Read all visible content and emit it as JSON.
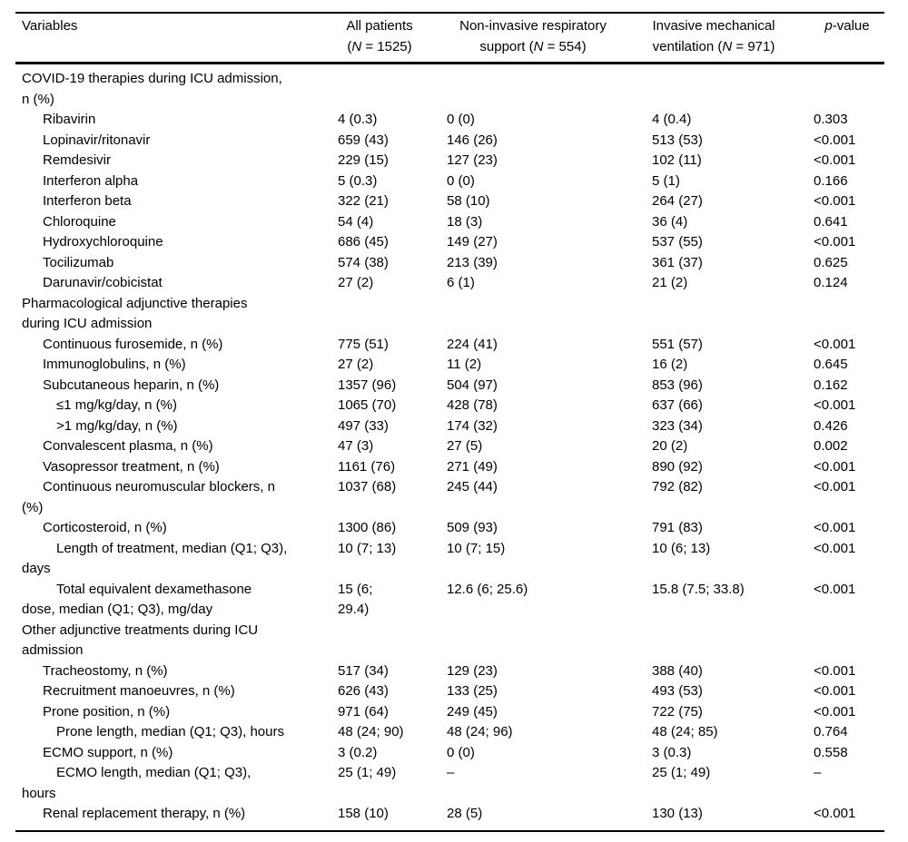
{
  "table": {
    "header": {
      "variables": "Variables",
      "all_patients": {
        "line1": "All patients",
        "open": "(",
        "n": "N",
        "rest": " = 1525)"
      },
      "non_invasive": {
        "line1": "Non-invasive respiratory",
        "pre": "support (",
        "n": "N",
        "rest": " = 554)"
      },
      "invasive": {
        "line1": "Invasive mechanical",
        "pre": "ventilation (",
        "n": "N",
        "rest": " = 971)"
      },
      "p_value": {
        "p": "p",
        "rest": "-value"
      }
    },
    "rows": [
      {
        "label": "COVID-19 therapies during ICU admission,\nn (%)",
        "v1": "",
        "v2": "",
        "v3": "",
        "p": ""
      },
      {
        "label": "Ribavirin",
        "v1": "4 (0.3)",
        "v2": "0 (0)",
        "v3": "4 (0.4)",
        "p": "0.303"
      },
      {
        "label": "Lopinavir/ritonavir",
        "v1": "659 (43)",
        "v2": "146 (26)",
        "v3": "513 (53)",
        "p": "<0.001"
      },
      {
        "label": "Remdesivir",
        "v1": "229 (15)",
        "v2": "127 (23)",
        "v3": "102 (11)",
        "p": "<0.001"
      },
      {
        "label": "Interferon alpha",
        "v1": "5 (0.3)",
        "v2": "0 (0)",
        "v3": "5 (1)",
        "p": "0.166"
      },
      {
        "label": "Interferon beta",
        "v1": "322 (21)",
        "v2": "58 (10)",
        "v3": "264 (27)",
        "p": "<0.001"
      },
      {
        "label": "Chloroquine",
        "v1": "54 (4)",
        "v2": "18 (3)",
        "v3": "36 (4)",
        "p": "0.641"
      },
      {
        "label": "Hydroxychloroquine",
        "v1": "686 (45)",
        "v2": "149 (27)",
        "v3": "537 (55)",
        "p": "<0.001"
      },
      {
        "label": "Tocilizumab",
        "v1": "574 (38)",
        "v2": "213 (39)",
        "v3": "361 (37)",
        "p": "0.625"
      },
      {
        "label": "Darunavir/cobicistat",
        "v1": "27 (2)",
        "v2": "6 (1)",
        "v3": "21 (2)",
        "p": "0.124"
      },
      {
        "label": "Pharmacological adjunctive therapies\nduring ICU admission",
        "v1": "",
        "v2": "",
        "v3": "",
        "p": ""
      },
      {
        "label": "Continuous furosemide, n (%)",
        "v1": "775 (51)",
        "v2": "224 (41)",
        "v3": "551 (57)",
        "p": "<0.001"
      },
      {
        "label": "Immunoglobulins, n (%)",
        "v1": "27 (2)",
        "v2": "11 (2)",
        "v3": "16 (2)",
        "p": "0.645"
      },
      {
        "label": "Subcutaneous heparin, n (%)",
        "v1": "1357 (96)",
        "v2": "504 (97)",
        "v3": "853 (96)",
        "p": "0.162"
      },
      {
        "label": "≤1 mg/kg/day, n (%)",
        "v1": "1065 (70)",
        "v2": "428 (78)",
        "v3": "637 (66)",
        "p": "<0.001"
      },
      {
        "label": ">1 mg/kg/day, n (%)",
        "v1": "497 (33)",
        "v2": "174 (32)",
        "v3": "323 (34)",
        "p": "0.426"
      },
      {
        "label": "Convalescent plasma, n (%)",
        "v1": "47 (3)",
        "v2": "27 (5)",
        "v3": "20 (2)",
        "p": "0.002"
      },
      {
        "label": "Vasopressor treatment, n (%)",
        "v1": "1161 (76)",
        "v2": "271 (49)",
        "v3": "890 (92)",
        "p": "<0.001"
      },
      {
        "label": "Continuous neuromuscular blockers, n\n(%)",
        "v1": "1037 (68)",
        "v2": "245 (44)",
        "v3": "792 (82)",
        "p": "<0.001"
      },
      {
        "label": "Corticosteroid, n (%)",
        "v1": "1300 (86)",
        "v2": "509 (93)",
        "v3": "791 (83)",
        "p": "<0.001"
      },
      {
        "label": "Length of treatment, median (Q1; Q3),\ndays",
        "v1": "10 (7; 13)",
        "v2": "10 (7; 15)",
        "v3": "10 (6; 13)",
        "p": "<0.001"
      },
      {
        "label": "Total equivalent dexamethasone\ndose, median (Q1; Q3), mg/day",
        "v1": "15 (6;\n29.4)",
        "v2": "12.6 (6; 25.6)",
        "v3": "15.8 (7.5; 33.8)",
        "p": "<0.001"
      },
      {
        "label": "Other adjunctive treatments during ICU\nadmission",
        "v1": "",
        "v2": "",
        "v3": "",
        "p": ""
      },
      {
        "label": "Tracheostomy, n (%)",
        "v1": "517 (34)",
        "v2": "129 (23)",
        "v3": "388 (40)",
        "p": "<0.001"
      },
      {
        "label": "Recruitment manoeuvres, n (%)",
        "v1": "626 (43)",
        "v2": "133 (25)",
        "v3": "493 (53)",
        "p": "<0.001"
      },
      {
        "label": "Prone position, n (%)",
        "v1": "971 (64)",
        "v2": "249 (45)",
        "v3": "722 (75)",
        "p": "<0.001"
      },
      {
        "label": "Prone length, median (Q1; Q3), hours",
        "v1": "48 (24; 90)",
        "v2": "48 (24; 96)",
        "v3": "48 (24; 85)",
        "p": "0.764"
      },
      {
        "label": "ECMO support, n (%)",
        "v1": "3 (0.2)",
        "v2": "0 (0)",
        "v3": "3 (0.3)",
        "p": "0.558"
      },
      {
        "label": "ECMO length, median (Q1; Q3),\nhours",
        "v1": "25 (1; 49)",
        "v2": "–",
        "v3": "25 (1; 49)",
        "p": "–"
      },
      {
        "label": "Renal replacement therapy, n (%)",
        "v1": "158 (10)",
        "v2": "28 (5)",
        "v3": "130 (13)",
        "p": "<0.001"
      }
    ]
  }
}
